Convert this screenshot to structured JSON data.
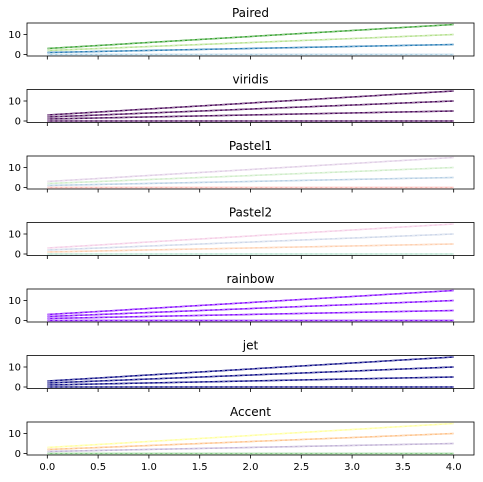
{
  "chart_data": [
    {
      "type": "line",
      "title": "Paired",
      "x": [
        0,
        4
      ],
      "xlim": [
        -0.2,
        4.2
      ],
      "ylim": [
        -0.75,
        15.75
      ],
      "yticks": [
        0,
        10
      ],
      "xticks": [
        0,
        0.5,
        1,
        1.5,
        2,
        2.5,
        3,
        3.5,
        4
      ],
      "show_xticklabels": false,
      "series": [
        {
          "values": [
            0,
            0
          ],
          "color": "#a6cee3",
          "dash_color": "#d8eaf3"
        },
        {
          "values": [
            1,
            5
          ],
          "color": "#1f78b4",
          "dash_color": "#8fbbd9"
        },
        {
          "values": [
            2,
            10
          ],
          "color": "#b2df8a",
          "dash_color": "#d8efc4"
        },
        {
          "values": [
            3,
            15
          ],
          "color": "#33a02c",
          "dash_color": "#99cf95"
        }
      ]
    },
    {
      "type": "line",
      "title": "viridis",
      "x": [
        0,
        4
      ],
      "xlim": [
        -0.2,
        4.2
      ],
      "ylim": [
        -0.75,
        15.75
      ],
      "yticks": [
        0,
        10
      ],
      "xticks": [
        0,
        0.5,
        1,
        1.5,
        2,
        2.5,
        3,
        3.5,
        4
      ],
      "show_xticklabels": false,
      "series": [
        {
          "values": [
            0,
            0
          ],
          "color": "#440154",
          "dash_color": "#a07fa9"
        },
        {
          "values": [
            1,
            5
          ],
          "color": "#440154",
          "dash_color": "#a07fa9"
        },
        {
          "values": [
            2,
            10
          ],
          "color": "#440154",
          "dash_color": "#a07fa9"
        },
        {
          "values": [
            3,
            15
          ],
          "color": "#440154",
          "dash_color": "#a07fa9"
        }
      ]
    },
    {
      "type": "line",
      "title": "Pastel1",
      "x": [
        0,
        4
      ],
      "xlim": [
        -0.2,
        4.2
      ],
      "ylim": [
        -0.75,
        15.75
      ],
      "yticks": [
        0,
        10
      ],
      "xticks": [
        0,
        0.5,
        1,
        1.5,
        2,
        2.5,
        3,
        3.5,
        4
      ],
      "show_xticklabels": false,
      "series": [
        {
          "values": [
            0,
            0
          ],
          "color": "#fbb4ae",
          "dash_color": "#fdd9d6"
        },
        {
          "values": [
            1,
            5
          ],
          "color": "#b3cde3",
          "dash_color": "#d9e6f1"
        },
        {
          "values": [
            2,
            10
          ],
          "color": "#ccebc5",
          "dash_color": "#e5f5e2"
        },
        {
          "values": [
            3,
            15
          ],
          "color": "#decbe4",
          "dash_color": "#eee5f1"
        }
      ]
    },
    {
      "type": "line",
      "title": "Pastel2",
      "x": [
        0,
        4
      ],
      "xlim": [
        -0.2,
        4.2
      ],
      "ylim": [
        -0.75,
        15.75
      ],
      "yticks": [
        0,
        10
      ],
      "xticks": [
        0,
        0.5,
        1,
        1.5,
        2,
        2.5,
        3,
        3.5,
        4
      ],
      "show_xticklabels": false,
      "series": [
        {
          "values": [
            0,
            0
          ],
          "color": "#b3e2cd",
          "dash_color": "#d9f0e6"
        },
        {
          "values": [
            1,
            5
          ],
          "color": "#fdcdac",
          "dash_color": "#fee6d5"
        },
        {
          "values": [
            2,
            10
          ],
          "color": "#cbd5e8",
          "dash_color": "#e5eaf3"
        },
        {
          "values": [
            3,
            15
          ],
          "color": "#f4cae4",
          "dash_color": "#f9e4f1"
        }
      ]
    },
    {
      "type": "line",
      "title": "rainbow",
      "x": [
        0,
        4
      ],
      "xlim": [
        -0.2,
        4.2
      ],
      "ylim": [
        -0.75,
        15.75
      ],
      "yticks": [
        0,
        10
      ],
      "xticks": [
        0,
        0.5,
        1,
        1.5,
        2,
        2.5,
        3,
        3.5,
        4
      ],
      "show_xticklabels": false,
      "series": [
        {
          "values": [
            0,
            0
          ],
          "color": "#8000ff",
          "dash_color": "#bf7fff"
        },
        {
          "values": [
            1,
            5
          ],
          "color": "#8000ff",
          "dash_color": "#bf7fff"
        },
        {
          "values": [
            2,
            10
          ],
          "color": "#8000ff",
          "dash_color": "#bf7fff"
        },
        {
          "values": [
            3,
            15
          ],
          "color": "#8000ff",
          "dash_color": "#bf7fff"
        }
      ]
    },
    {
      "type": "line",
      "title": "jet",
      "x": [
        0,
        4
      ],
      "xlim": [
        -0.2,
        4.2
      ],
      "ylim": [
        -0.75,
        15.75
      ],
      "yticks": [
        0,
        10
      ],
      "xticks": [
        0,
        0.5,
        1,
        1.5,
        2,
        2.5,
        3,
        3.5,
        4
      ],
      "show_xticklabels": false,
      "series": [
        {
          "values": [
            0,
            0
          ],
          "color": "#000080",
          "dash_color": "#7f7fbf"
        },
        {
          "values": [
            1,
            5
          ],
          "color": "#000080",
          "dash_color": "#7f7fbf"
        },
        {
          "values": [
            2,
            10
          ],
          "color": "#000080",
          "dash_color": "#7f7fbf"
        },
        {
          "values": [
            3,
            15
          ],
          "color": "#000080",
          "dash_color": "#7f7fbf"
        }
      ]
    },
    {
      "type": "line",
      "title": "Accent",
      "x": [
        0,
        4
      ],
      "xlim": [
        -0.2,
        4.2
      ],
      "ylim": [
        -0.75,
        15.75
      ],
      "yticks": [
        0,
        10
      ],
      "xticks": [
        0,
        0.5,
        1,
        1.5,
        2,
        2.5,
        3,
        3.5,
        4
      ],
      "show_xticklabels": true,
      "xticklabels": [
        "0.0",
        "0.5",
        "1.0",
        "1.5",
        "2.0",
        "2.5",
        "3.0",
        "3.5",
        "4.0"
      ],
      "series": [
        {
          "values": [
            0,
            0
          ],
          "color": "#7fc97f",
          "dash_color": "#bfe4bf"
        },
        {
          "values": [
            1,
            5
          ],
          "color": "#beaed4",
          "dash_color": "#ded6e9"
        },
        {
          "values": [
            2,
            10
          ],
          "color": "#fdc086",
          "dash_color": "#fedfc2"
        },
        {
          "values": [
            3,
            15
          ],
          "color": "#ffff99",
          "dash_color": "#ffffcc"
        }
      ]
    }
  ]
}
